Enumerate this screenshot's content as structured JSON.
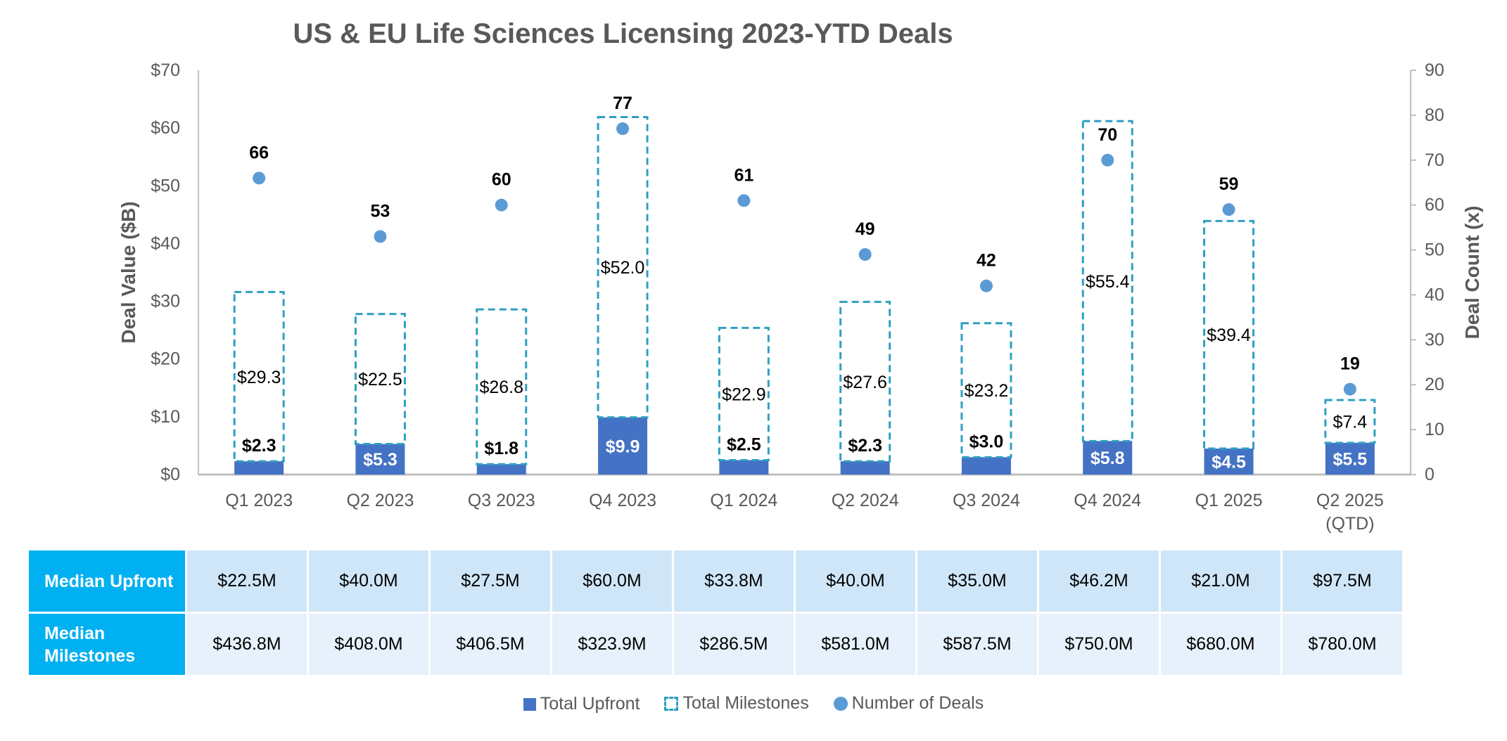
{
  "chart_data": {
    "type": "bar",
    "title": "US & EU Life Sciences Licensing 2023-YTD Deals",
    "categories": [
      "Q1 2023",
      "Q2 2023",
      "Q3 2023",
      "Q4 2023",
      "Q1 2024",
      "Q2 2024",
      "Q3 2024",
      "Q4 2024",
      "Q1 2025",
      "Q2 2025\n(QTD)"
    ],
    "series": [
      {
        "name": "Total Upfront",
        "stack": "value",
        "axis": "left",
        "values": [
          2.3,
          5.3,
          1.8,
          9.9,
          2.5,
          2.3,
          3.0,
          5.8,
          4.5,
          5.5
        ],
        "labels": [
          "$2.3",
          "$5.3",
          "$1.8",
          "$9.9",
          "$2.5",
          "$2.3",
          "$3.0",
          "$5.8",
          "$4.5",
          "$5.5"
        ]
      },
      {
        "name": "Total Milestones",
        "stack": "value",
        "axis": "left",
        "values": [
          29.3,
          22.5,
          26.8,
          52.0,
          22.9,
          27.6,
          23.2,
          55.4,
          39.4,
          7.4
        ],
        "labels": [
          "$29.3",
          "$22.5",
          "$26.8",
          "$52.0",
          "$22.9",
          "$27.6",
          "$23.2",
          "$55.4",
          "$39.4",
          "$7.4"
        ]
      },
      {
        "name": "Number of Deals",
        "type": "scatter",
        "axis": "right",
        "values": [
          66,
          53,
          60,
          77,
          61,
          49,
          42,
          70,
          59,
          19
        ],
        "labels": [
          "66",
          "53",
          "60",
          "77",
          "61",
          "49",
          "42",
          "70",
          "59",
          "19"
        ]
      }
    ],
    "ylabel": "Deal Value ($B)",
    "ylim": [
      0,
      70
    ],
    "yticks": [
      "$0",
      "$10",
      "$20",
      "$30",
      "$40",
      "$50",
      "$60",
      "$70"
    ],
    "y2label": "Deal Count (x)",
    "y2lim": [
      0,
      90
    ],
    "y2ticks": [
      "0",
      "10",
      "20",
      "30",
      "40",
      "50",
      "60",
      "70",
      "80",
      "90"
    ],
    "legend": "bottom",
    "colors": {
      "upfront": "#4472c4",
      "milestones_border": "#2e9fc2",
      "deals": "#5b9bd5",
      "axis": "#bfbfbf"
    }
  },
  "table": {
    "rows": [
      {
        "label": "Median Upfront",
        "values": [
          "$22.5M",
          "$40.0M",
          "$27.5M",
          "$60.0M",
          "$33.8M",
          "$40.0M",
          "$35.0M",
          "$46.2M",
          "$21.0M",
          "$97.5M"
        ]
      },
      {
        "label": "Median Milestones",
        "values": [
          "$436.8M",
          "$408.0M",
          "$406.5M",
          "$323.9M",
          "$286.5M",
          "$581.0M",
          "$587.5M",
          "$750.0M",
          "$680.0M",
          "$780.0M"
        ]
      }
    ]
  },
  "legend": {
    "upfront": "Total Upfront",
    "milestones": "Total Milestones",
    "deals": "Number of Deals"
  }
}
